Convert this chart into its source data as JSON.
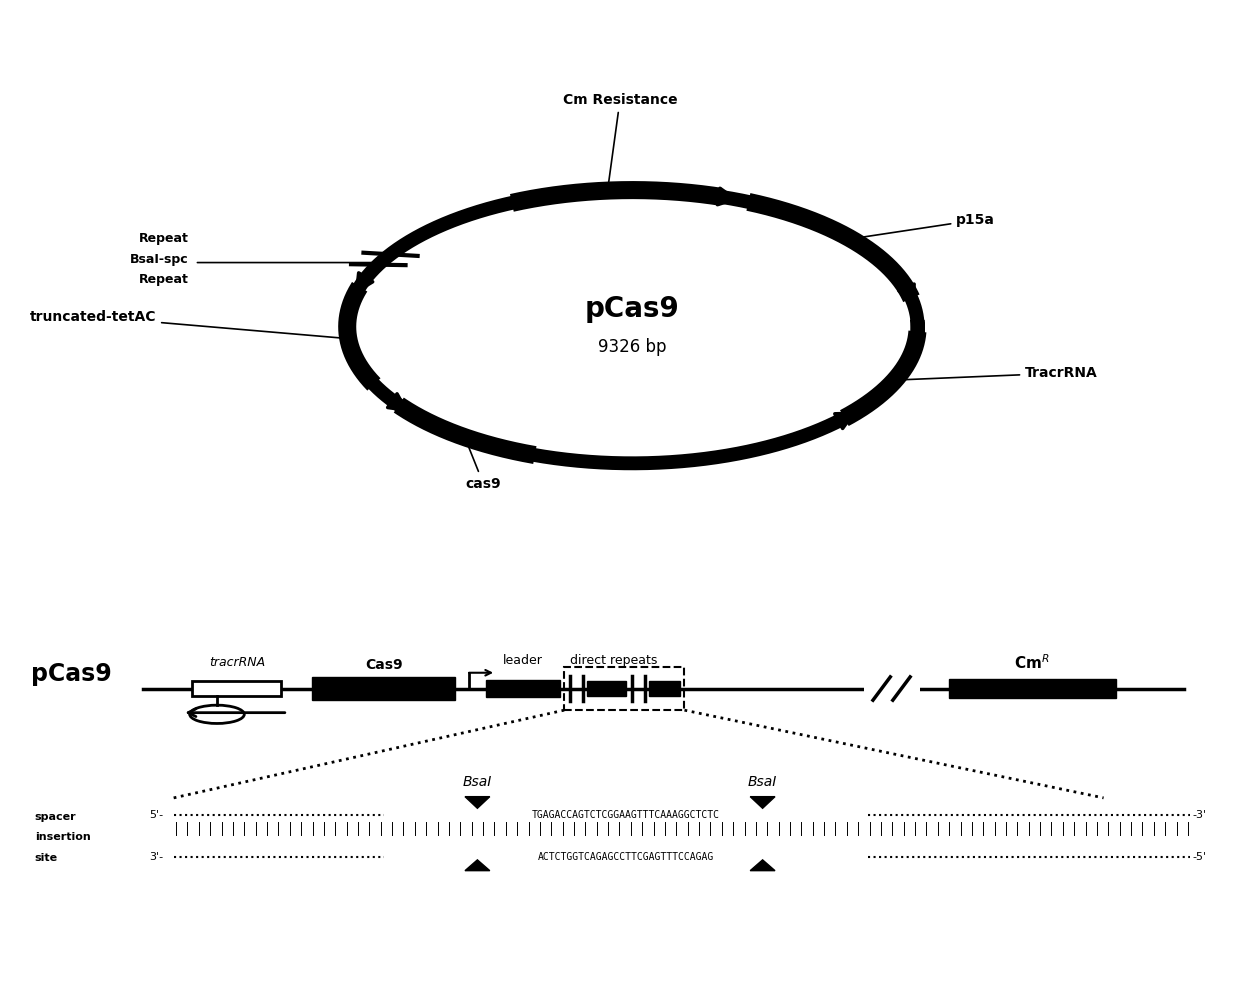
{
  "bg_color": "#ffffff",
  "plasmid_title": "pCas9",
  "plasmid_subtitle": "9326 bp",
  "map_title": "pCas9",
  "cmr_label": "Cm$^R$",
  "labels": {
    "cm_resistance": "Cm Resistance",
    "p15a": "p15a",
    "tracr_rna_top": "TracrRNA",
    "truncated": "truncated-tetAC",
    "repeat_top": "Repeat",
    "bsal_spc": "BsaI-spc",
    "repeat_bottom": "Repeat",
    "cas9_bottom": "cas9"
  },
  "map_elements": {
    "tracr_rna": "tracrRNA",
    "cas9": "Cas9",
    "leader": "leader",
    "direct_repeats": "direct repeats",
    "cmr": "Cm"
  },
  "seq_labels": {
    "bsal1": "BsaI",
    "bsal2": "BsaI",
    "spacer": "spacer",
    "insertion": "insertion",
    "site": "site",
    "seq_top": "TGAGACCAGTCTCGGAAGTTTCAAAGGCTCTC",
    "seq_bottom": "ACTCTGGTCAGAGCCTTCGAGTTTCCAGAG"
  }
}
